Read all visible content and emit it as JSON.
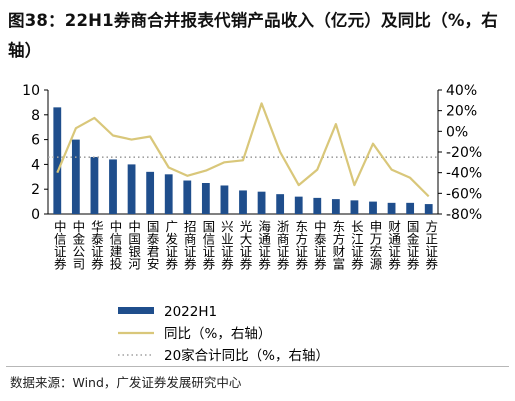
{
  "figure": {
    "title": "图38：22H1券商合并报表代销产品收入（亿元）及同比（%，右轴）",
    "source": "数据来源：Wind，广发证券发展研究中心"
  },
  "chart_data": {
    "type": "bar",
    "title": "图38：22H1券商合并报表代销产品收入（亿元）及同比（%，右轴）",
    "categories": [
      "中信证券",
      "中金公司",
      "华泰证券",
      "中信建投",
      "中国银河",
      "国泰君安",
      "广发证券",
      "招商证券",
      "国信证券",
      "兴业证券",
      "光大证券",
      "海通证券",
      "浙商证券",
      "东方证券",
      "中泰证券",
      "东方财富",
      "长江证券",
      "申万宏源",
      "财通证券",
      "国金证券",
      "方正证券"
    ],
    "series": [
      {
        "name": "2022H1",
        "kind": "bar",
        "axis": "left",
        "color": "#1f4e8c",
        "values": [
          8.6,
          6.0,
          4.6,
          4.4,
          4.0,
          3.4,
          3.2,
          2.7,
          2.5,
          2.3,
          1.9,
          1.8,
          1.6,
          1.4,
          1.3,
          1.2,
          1.1,
          1.0,
          0.9,
          0.9,
          0.8
        ]
      },
      {
        "name": "同比（%，右轴）",
        "kind": "line",
        "axis": "right",
        "color": "#d9c77a",
        "values": [
          -40,
          3,
          13,
          -4,
          -8,
          -5,
          -35,
          -43,
          -38,
          -30,
          -28,
          27,
          -20,
          -52,
          -37,
          7,
          -52,
          -12,
          -37,
          -45,
          -63
        ]
      },
      {
        "name": "20家合计同比（%，右轴）",
        "kind": "reference",
        "axis": "right",
        "color": "#a0a0a0",
        "value": -25
      }
    ],
    "y_left": {
      "min": 0,
      "max": 10,
      "ticks": [
        0,
        2,
        4,
        6,
        8,
        10
      ]
    },
    "y_right": {
      "min": -80,
      "max": 40,
      "ticks": [
        -80,
        -60,
        -40,
        -20,
        0,
        20,
        40
      ],
      "tick_labels": [
        "-80%",
        "-60%",
        "-40%",
        "-20%",
        "0%",
        "20%",
        "40%"
      ]
    },
    "grid": false,
    "legend_position": "bottom"
  }
}
